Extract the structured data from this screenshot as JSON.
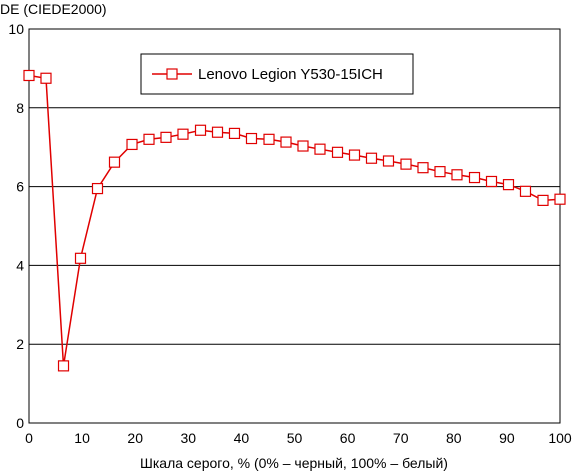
{
  "chart_data": {
    "type": "line",
    "ylabel": "DE (CIEDE2000)",
    "xlabel": "Шкала серого, % (0% – черный, 100% – белый)",
    "xlim": [
      0,
      100
    ],
    "ylim": [
      0,
      10
    ],
    "xticks": [
      0,
      10,
      20,
      30,
      40,
      50,
      60,
      70,
      80,
      90,
      100
    ],
    "yticks": [
      0,
      2,
      4,
      6,
      8,
      10
    ],
    "grid": "horizontal",
    "legend_position": "top-center",
    "series": [
      {
        "name": "Lenovo Legion Y530-15ICH",
        "color": "#e00000",
        "marker": "square-open",
        "x": [
          0,
          3.2,
          6.5,
          9.7,
          12.9,
          16.1,
          19.4,
          22.6,
          25.8,
          29.0,
          32.3,
          35.5,
          38.7,
          41.9,
          45.2,
          48.4,
          51.6,
          54.8,
          58.1,
          61.3,
          64.5,
          67.7,
          71.0,
          74.2,
          77.4,
          80.6,
          83.9,
          87.1,
          90.3,
          93.5,
          96.8,
          100
        ],
        "y": [
          8.82,
          8.75,
          1.45,
          4.18,
          5.95,
          6.62,
          7.07,
          7.2,
          7.25,
          7.33,
          7.43,
          7.38,
          7.35,
          7.22,
          7.2,
          7.13,
          7.03,
          6.95,
          6.87,
          6.8,
          6.72,
          6.65,
          6.57,
          6.48,
          6.38,
          6.3,
          6.23,
          6.13,
          6.05,
          5.88,
          5.65,
          5.68
        ]
      }
    ]
  }
}
